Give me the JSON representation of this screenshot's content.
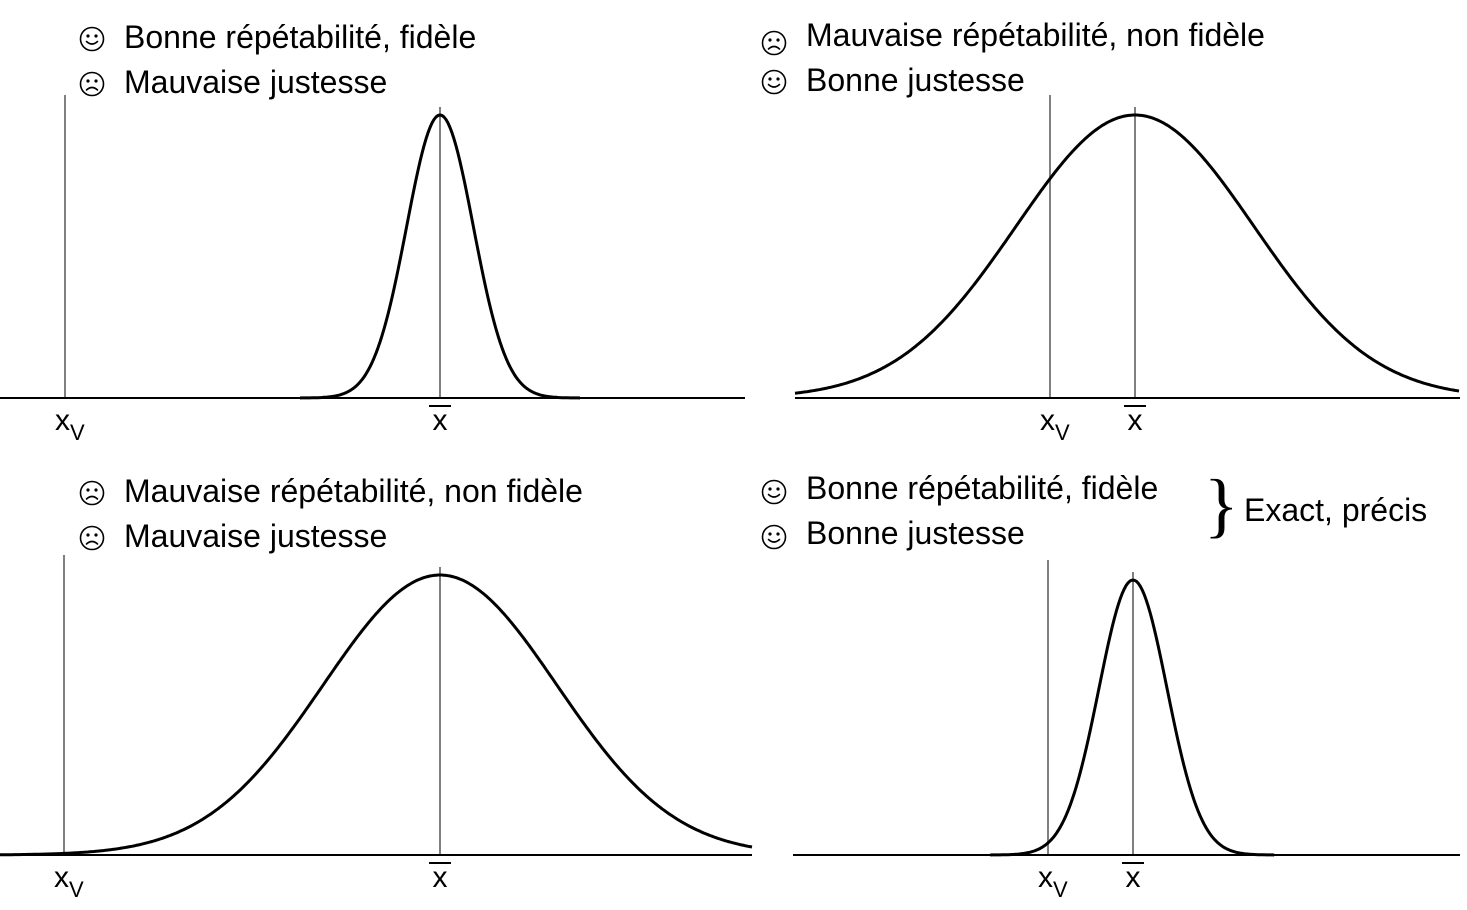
{
  "panels": [
    {
      "id": "top-left",
      "captions": [
        {
          "face": "happy",
          "text": "Bonne répétabilité, fidèle"
        },
        {
          "face": "sad",
          "text": "Mauvaise justesse"
        }
      ],
      "x_true_label": "x",
      "x_true_sub": "V",
      "x_mean_label": "x",
      "x_true": 0,
      "x_mean": 4.5,
      "sigma": 0.4
    },
    {
      "id": "top-right",
      "captions": [
        {
          "face": "sad",
          "text": "Mauvaise répétabilité, non fidèle"
        },
        {
          "face": "happy",
          "text": "Bonne justesse"
        }
      ],
      "x_true_label": "x",
      "x_true_sub": "V",
      "x_mean_label": "x",
      "x_true": 0,
      "x_mean": 1,
      "sigma": 1.4
    },
    {
      "id": "bottom-left",
      "captions": [
        {
          "face": "sad",
          "text": "Mauvaise répétabilité, non fidèle"
        },
        {
          "face": "sad",
          "text": "Mauvaise justesse"
        }
      ],
      "x_true_label": "x",
      "x_true_sub": "V",
      "x_mean_label": "x",
      "x_true": 0,
      "x_mean": 4.5,
      "sigma": 1.4
    },
    {
      "id": "bottom-right",
      "captions": [
        {
          "face": "happy",
          "text": "Bonne répétabilité, fidèle"
        },
        {
          "face": "happy",
          "text": "Bonne justesse"
        }
      ],
      "brace_label": "Exact, précis",
      "x_true_label": "x",
      "x_true_sub": "V",
      "x_mean_label": "x",
      "x_true": 0,
      "x_mean": 1,
      "sigma": 0.4
    }
  ],
  "colors": {
    "curve": "#000000",
    "axis": "#000000",
    "marker": "#808080"
  }
}
